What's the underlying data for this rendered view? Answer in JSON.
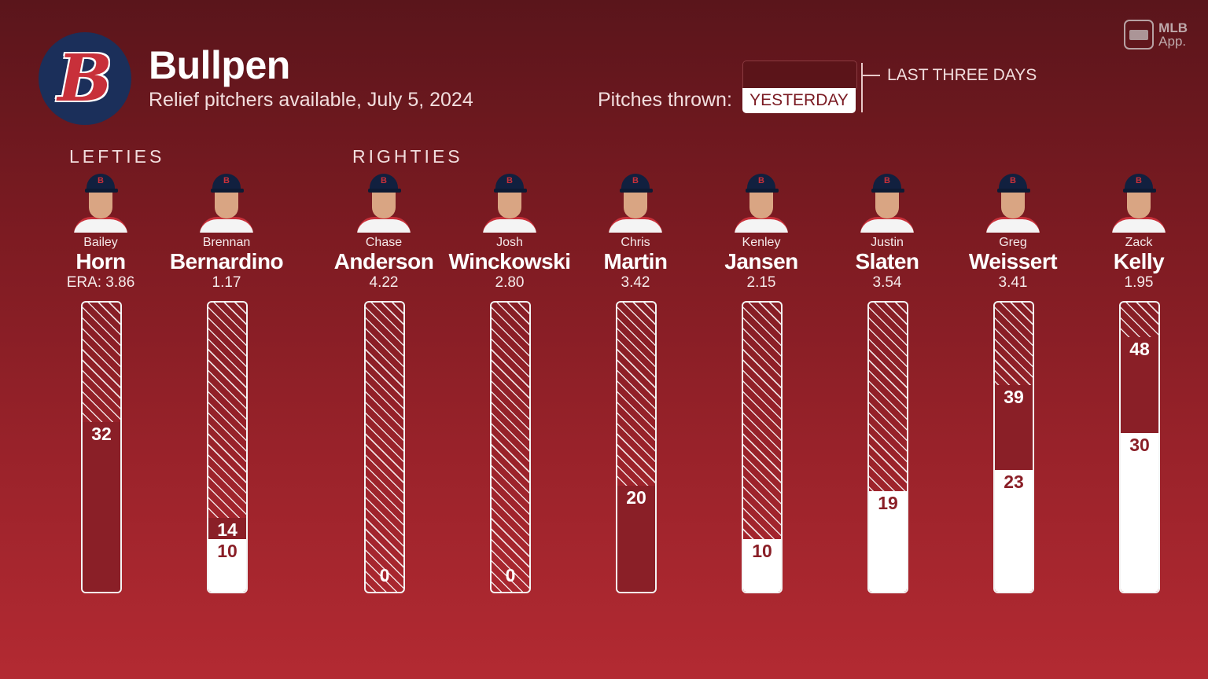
{
  "header": {
    "logo_letter": "B",
    "title": "Bullpen",
    "subtitle": "Relief pitchers available, July 5, 2024",
    "brand_top": "MLB",
    "brand_bottom": "App."
  },
  "legend": {
    "label": "Pitches thrown:",
    "yesterday": "YESTERDAY",
    "last_three_days": "LAST THREE DAYS"
  },
  "sections": {
    "lefties": "LEFTIES",
    "righties": "RIGHTIES"
  },
  "scale_max_pitches": 54,
  "players": [
    {
      "first": "Bailey",
      "last": "Horn",
      "era": "ERA: 3.86",
      "three_day": 32,
      "yesterday": 0,
      "labels": [
        "32"
      ]
    },
    {
      "first": "Brennan",
      "last": "Bernardino",
      "era": "1.17",
      "three_day": 14,
      "yesterday": 10,
      "labels": [
        "14",
        "10"
      ]
    },
    {
      "first": "Chase",
      "last": "Anderson",
      "era": "4.22",
      "three_day": 0,
      "yesterday": 0,
      "labels": [
        "0"
      ]
    },
    {
      "first": "Josh",
      "last": "Winckowski",
      "era": "2.80",
      "three_day": 0,
      "yesterday": 0,
      "labels": [
        "0"
      ]
    },
    {
      "first": "Chris",
      "last": "Martin",
      "era": "3.42",
      "three_day": 20,
      "yesterday": 0,
      "labels": [
        "20"
      ]
    },
    {
      "first": "Kenley",
      "last": "Jansen",
      "era": "2.15",
      "three_day": 10,
      "yesterday": 10,
      "labels": [
        "10"
      ]
    },
    {
      "first": "Justin",
      "last": "Slaten",
      "era": "3.54",
      "three_day": 19,
      "yesterday": 19,
      "labels": [
        "19"
      ]
    },
    {
      "first": "Greg",
      "last": "Weissert",
      "era": "3.41",
      "three_day": 39,
      "yesterday": 23,
      "labels": [
        "39",
        "23"
      ]
    },
    {
      "first": "Zack",
      "last": "Kelly",
      "era": "1.95",
      "three_day": 48,
      "yesterday": 30,
      "labels": [
        "48",
        "30"
      ]
    }
  ],
  "colors": {
    "accent": "#8a1f27",
    "cap": "#11203f",
    "logo_bg": "#1b2f5a"
  }
}
